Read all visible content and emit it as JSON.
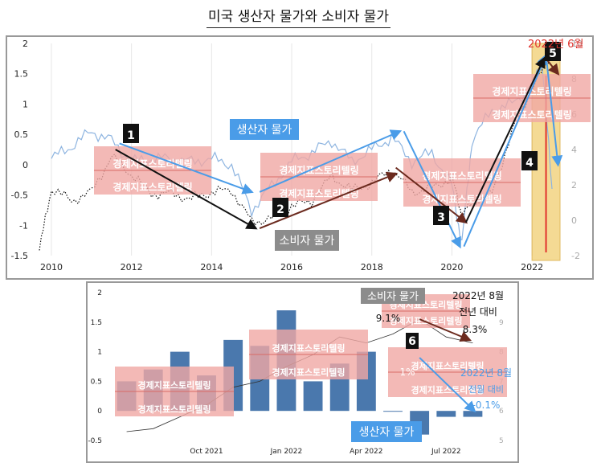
{
  "page": {
    "title": "미국 생산자 물가와 소비자 물가"
  },
  "watermark": "경제지표스토리텔링",
  "colors": {
    "ppi": "#4a9ce8",
    "ppi_light": "#8db4e0",
    "cpi": "#111111",
    "bar": "#4a78ad",
    "highlight": "#f2d27a",
    "red": "#e0322d",
    "watermark_bg": "#f0a8a4",
    "arrow_dark": "#6b2a1e"
  },
  "top": {
    "june_label": "2022년 6월",
    "ppi_label": "생산자 물가",
    "cpi_label": "소비자 물가",
    "badges": [
      "1",
      "2",
      "3",
      "4",
      "5"
    ]
  },
  "bottom": {
    "cpi_label": "소비자 물가",
    "ppi_label": "생산자 물가",
    "cpi_note_month": "2022년 8월",
    "cpi_note_yoy": "전년 대비",
    "cpi_prev": "9.1%",
    "cpi_curr": "8.3%",
    "ppi_note_month": "2022년 8월",
    "ppi_note_mom": "전월 대비",
    "ppi_bar_label": "1%",
    "ppi_curr": "-0.1%",
    "badge": "6"
  },
  "chart_data": [
    {
      "type": "line",
      "series": [
        {
          "name": "생산자 물가",
          "axis": "left",
          "x": [
            2010.0,
            2010.5,
            2011.0,
            2011.5,
            2012.0,
            2012.5,
            2013.0,
            2013.5,
            2014.0,
            2014.5,
            2015.0,
            2015.5,
            2016.0,
            2016.5,
            2017.0,
            2017.5,
            2018.0,
            2018.5,
            2019.0,
            2019.5,
            2020.0,
            2020.25,
            2020.5,
            2021.0,
            2021.5,
            2022.0,
            2022.25,
            2022.5
          ],
          "values": [
            0.1,
            0.3,
            0.55,
            0.4,
            0.05,
            0.1,
            0.1,
            0.05,
            0.1,
            0.0,
            -0.75,
            -0.35,
            0.05,
            0.2,
            0.4,
            0.05,
            0.25,
            0.45,
            0.05,
            0.2,
            -0.35,
            -1.3,
            0.4,
            0.9,
            1.0,
            1.3,
            1.7,
            -0.4
          ]
        },
        {
          "name": "소비자 물가",
          "axis": "right",
          "x": [
            2009.7,
            2010.0,
            2010.5,
            2011.0,
            2011.5,
            2012.0,
            2012.5,
            2013.0,
            2013.5,
            2014.0,
            2014.5,
            2015.0,
            2015.5,
            2016.0,
            2016.5,
            2017.0,
            2017.5,
            2018.0,
            2018.5,
            2019.0,
            2019.5,
            2020.0,
            2020.25,
            2020.5,
            2021.0,
            2021.5,
            2022.0,
            2022.45
          ],
          "values": [
            -1.7,
            1.8,
            1.1,
            1.6,
            3.6,
            2.6,
            1.5,
            1.5,
            1.2,
            1.6,
            1.7,
            -0.1,
            0.1,
            0.8,
            1.1,
            2.5,
            1.7,
            2.1,
            2.9,
            1.6,
            1.8,
            2.4,
            0.3,
            1.0,
            1.5,
            5.0,
            7.5,
            9.1
          ]
        }
      ],
      "x_ticks": [
        "2010",
        "2012",
        "2014",
        "2016",
        "2018",
        "2020",
        "2022"
      ],
      "xlim": [
        2009.7,
        2022.7
      ],
      "y_left_ticks": [
        "-1.5",
        "-1",
        "-0.5",
        "0",
        "0.5",
        "1",
        "1.5",
        "2"
      ],
      "ylim_left": [
        -1.5,
        2.0
      ],
      "y_right_ticks": [
        "-2",
        "0",
        "2",
        "4",
        "6",
        "8",
        "10"
      ],
      "ylim_right": [
        -2,
        10
      ],
      "highlight_x": [
        2022.0,
        2022.7
      ],
      "grid": "vertical"
    },
    {
      "type": "bar",
      "categories": [
        "2021-07",
        "2021-08",
        "2021-09",
        "2021-10",
        "2021-11",
        "2021-12",
        "2022-01",
        "2022-02",
        "2022-03",
        "2022-04",
        "2022-05",
        "2022-06",
        "2022-07",
        "2022-08"
      ],
      "values": [
        0.5,
        0.7,
        1.0,
        0.6,
        1.2,
        1.1,
        1.7,
        0.5,
        0.8,
        1.0,
        0.0,
        -0.4,
        -0.1,
        -0.1
      ],
      "line_values": [
        5.3,
        5.4,
        5.8,
        6.2,
        6.8,
        7.0,
        7.5,
        7.9,
        8.5,
        8.3,
        8.6,
        9.1,
        8.5,
        8.3
      ],
      "x_ticks": [
        "Oct 2021",
        "Jan 2022",
        "Apr 2022",
        "Jul 2022"
      ],
      "y_left_ticks": [
        "-0.5",
        "0",
        "0.5",
        "1",
        "1.5",
        "2"
      ],
      "ylim_left": [
        -0.5,
        2.0
      ],
      "y_right_ticks": [
        "5",
        "6",
        "7",
        "8",
        "9"
      ],
      "ylim_right": [
        5,
        10
      ]
    }
  ]
}
